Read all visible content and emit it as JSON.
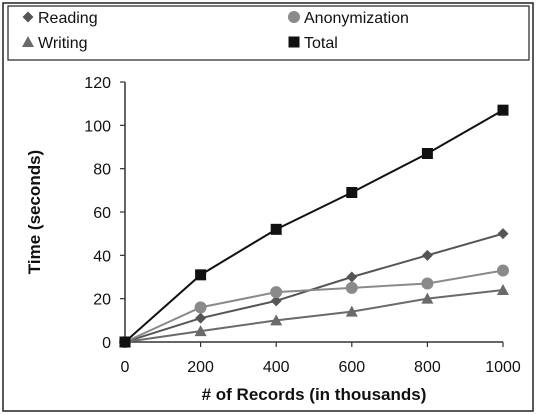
{
  "chart_data": {
    "type": "line",
    "title": "",
    "xlabel": "# of Records (in thousands)",
    "ylabel": "Time (seconds)",
    "x": [
      0,
      200,
      400,
      600,
      800,
      1000
    ],
    "xlim": [
      0,
      1000
    ],
    "ylim": [
      0,
      120
    ],
    "xticks": [
      "0",
      "200",
      "400",
      "600",
      "800",
      "1000"
    ],
    "yticks": [
      "0",
      "20",
      "40",
      "60",
      "80",
      "100",
      "120"
    ],
    "grid": false,
    "legend_position": "top",
    "series": [
      {
        "name": "Reading",
        "marker": "diamond",
        "color": "#555555",
        "values": [
          0,
          11,
          19,
          30,
          40,
          50
        ]
      },
      {
        "name": "Anonymization",
        "marker": "circle",
        "color": "#8a8a8a",
        "values": [
          0,
          16,
          23,
          25,
          27,
          33
        ]
      },
      {
        "name": "Writing",
        "marker": "triangle",
        "color": "#6a6a6a",
        "values": [
          0,
          5,
          10,
          14,
          20,
          24
        ]
      },
      {
        "name": "Total",
        "marker": "square",
        "color": "#111111",
        "values": [
          0,
          31,
          52,
          69,
          87,
          107
        ]
      }
    ]
  }
}
